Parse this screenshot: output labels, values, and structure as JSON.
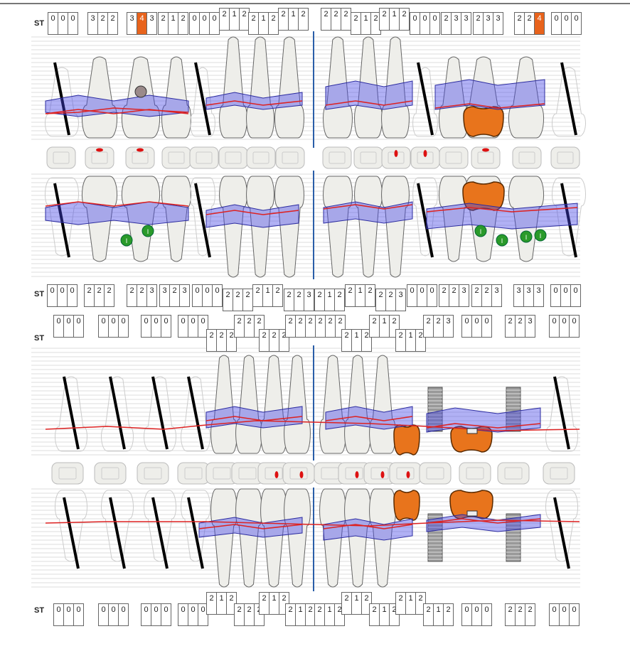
{
  "colors": {
    "bleeding": "#e8631c",
    "gum_band": "#5555dd",
    "gingival_line": "#dd2222",
    "crown": "#e8741c",
    "midline": "#2a5ea8"
  },
  "probing_rows": [
    {
      "label": "ST",
      "sets": [
        {
          "v": [
            "0",
            "0",
            "0"
          ]
        },
        {
          "v": [
            "3",
            "2",
            "2"
          ]
        },
        {
          "v": [
            "3",
            "4",
            "3"
          ],
          "highlight": 1
        },
        {
          "v": [
            "2",
            "1",
            "2"
          ]
        },
        {
          "v": [
            "0",
            "0",
            "0"
          ]
        },
        {
          "v": [
            "2",
            "1",
            "2"
          ]
        },
        {
          "v": [
            "2",
            "1",
            "2"
          ]
        },
        {
          "v": [
            "2",
            "1",
            "2"
          ]
        },
        {
          "v": [
            "2",
            "2",
            "2"
          ]
        },
        {
          "v": [
            "2",
            "1",
            "2"
          ]
        },
        {
          "v": [
            "2",
            "1",
            "2"
          ]
        },
        {
          "v": [
            "0",
            "0",
            "0"
          ]
        },
        {
          "v": [
            "2",
            "3",
            "3"
          ]
        },
        {
          "v": [
            "2",
            "3",
            "3"
          ]
        },
        {
          "v": [
            "2",
            "2",
            "4"
          ],
          "highlight": 2
        },
        {
          "v": [
            "0",
            "0",
            "0"
          ]
        }
      ]
    },
    {
      "label": "ST",
      "sets": [
        {
          "v": [
            "0",
            "0",
            "0"
          ]
        },
        {
          "v": [
            "2",
            "2",
            "2"
          ]
        },
        {
          "v": [
            "2",
            "2",
            "3"
          ]
        },
        {
          "v": [
            "3",
            "2",
            "3"
          ]
        },
        {
          "v": [
            "0",
            "0",
            "0"
          ]
        },
        {
          "v": [
            "2",
            "2",
            "2"
          ]
        },
        {
          "v": [
            "2",
            "1",
            "2"
          ]
        },
        {
          "v": [
            "2",
            "2",
            "3"
          ]
        },
        {
          "v": [
            "2",
            "1",
            "2"
          ]
        },
        {
          "v": [
            "2",
            "1",
            "2"
          ]
        },
        {
          "v": [
            "2",
            "2",
            "3"
          ]
        },
        {
          "v": [
            "0",
            "0",
            "0"
          ]
        },
        {
          "v": [
            "2",
            "2",
            "3"
          ]
        },
        {
          "v": [
            "2",
            "2",
            "3"
          ]
        },
        {
          "v": [
            "3",
            "3",
            "3"
          ]
        },
        {
          "v": [
            "0",
            "0",
            "0"
          ]
        }
      ]
    },
    {
      "label": "ST",
      "sets": [
        {
          "v": [
            "0",
            "0",
            "0"
          ]
        },
        {
          "v": [
            "0",
            "0",
            "0"
          ]
        },
        {
          "v": [
            "0",
            "0",
            "0"
          ]
        },
        {
          "v": [
            "0",
            "0",
            "0"
          ]
        },
        {
          "v": [
            "2",
            "2",
            "2"
          ]
        },
        {
          "v": [
            "2",
            "2",
            "2"
          ]
        },
        {
          "v": [
            "2",
            "2",
            "2"
          ]
        },
        {
          "v": [
            "2",
            "2",
            "2"
          ]
        },
        {
          "v": [
            "2",
            "2",
            "2"
          ]
        },
        {
          "v": [
            "2",
            "1",
            "2"
          ]
        },
        {
          "v": [
            "2",
            "1",
            "2"
          ]
        },
        {
          "v": [
            "2",
            "1",
            "2"
          ]
        },
        {
          "v": [
            "2",
            "2",
            "3"
          ]
        },
        {
          "v": [
            "0",
            "0",
            "0"
          ]
        },
        {
          "v": [
            "2",
            "2",
            "3"
          ]
        },
        {
          "v": [
            "0",
            "0",
            "0"
          ]
        }
      ]
    },
    {
      "label": "ST",
      "sets": [
        {
          "v": [
            "0",
            "0",
            "0"
          ]
        },
        {
          "v": [
            "0",
            "0",
            "0"
          ]
        },
        {
          "v": [
            "0",
            "0",
            "0"
          ]
        },
        {
          "v": [
            "0",
            "0",
            "0"
          ]
        },
        {
          "v": [
            "2",
            "1",
            "2"
          ]
        },
        {
          "v": [
            "2",
            "2",
            "2"
          ]
        },
        {
          "v": [
            "2",
            "1",
            "2"
          ]
        },
        {
          "v": [
            "2",
            "1",
            "2"
          ]
        },
        {
          "v": [
            "2",
            "1",
            "2"
          ]
        },
        {
          "v": [
            "2",
            "1",
            "2"
          ]
        },
        {
          "v": [
            "2",
            "1",
            "2"
          ]
        },
        {
          "v": [
            "2",
            "1",
            "2"
          ]
        },
        {
          "v": [
            "2",
            "1",
            "2"
          ]
        },
        {
          "v": [
            "0",
            "0",
            "0"
          ]
        },
        {
          "v": [
            "2",
            "2",
            "2"
          ]
        },
        {
          "v": [
            "0",
            "0",
            "0"
          ]
        }
      ]
    }
  ],
  "charts": [
    {
      "upper": [
        "missing",
        "tooth",
        "tooth",
        "tooth",
        "missing",
        "tooth",
        "tooth",
        "tooth",
        "tooth",
        "tooth",
        "tooth",
        "missing",
        "tooth",
        "crown",
        "tooth",
        "missing"
      ],
      "lower": [
        "missing",
        "tooth",
        "tooth",
        "tooth",
        "missing",
        "tooth",
        "tooth",
        "tooth",
        "tooth",
        "tooth",
        "tooth",
        "missing",
        "tooth",
        "crown",
        "tooth",
        "missing"
      ],
      "furcation_label": "I"
    },
    {
      "upper": [
        "missing",
        "missing",
        "missing",
        "missing",
        "tooth",
        "tooth",
        "tooth",
        "tooth",
        "tooth",
        "tooth",
        "tooth",
        "crown",
        "implant",
        "crown",
        "implant",
        "missing"
      ],
      "lower": [
        "missing",
        "missing",
        "missing",
        "missing",
        "tooth",
        "tooth",
        "tooth",
        "tooth",
        "tooth",
        "tooth",
        "tooth",
        "crown",
        "implant",
        "crown",
        "implant",
        "missing"
      ]
    }
  ]
}
